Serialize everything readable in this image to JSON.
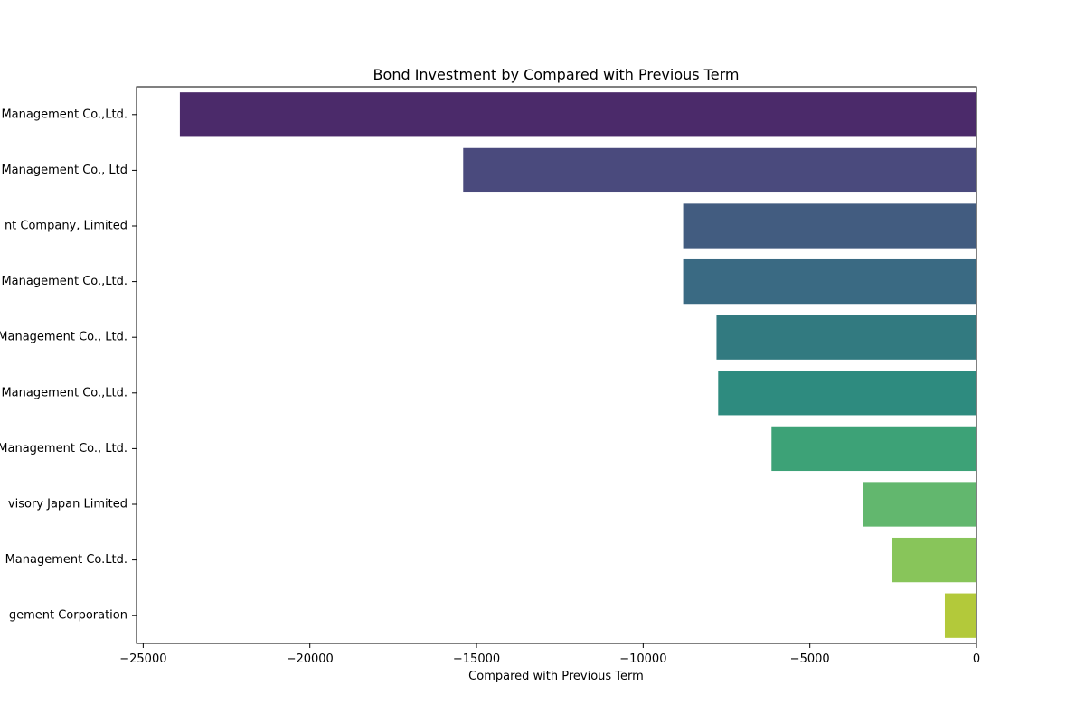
{
  "chart_data": {
    "type": "bar",
    "orientation": "horizontal",
    "title": "Bond Investment by Compared with Previous Term",
    "xlabel": "Compared with Previous Term",
    "ylabel": "",
    "xlim": [
      -25200,
      0
    ],
    "xticks": [
      -25000,
      -20000,
      -15000,
      -10000,
      -5000,
      0
    ],
    "xtick_labels": [
      "−25000",
      "−20000",
      "−15000",
      "−10000",
      "−5000",
      "0"
    ],
    "categories": [
      "Management Co.,Ltd.",
      "Management Co., Ltd",
      "nt Company, Limited",
      "Management Co.,Ltd.",
      "Management Co., Ltd.",
      "Management Co.,Ltd.",
      "Management Co., Ltd.",
      "visory Japan Limited",
      "Management Co.Ltd.",
      "gement Corporation"
    ],
    "values": [
      -23900,
      -15400,
      -8800,
      -8800,
      -7800,
      -7750,
      -6150,
      -3400,
      -2550,
      -950
    ],
    "colors": [
      "#4b2a6a",
      "#4a4a7d",
      "#425c80",
      "#3a6a83",
      "#327a80",
      "#2e8b7f",
      "#3da277",
      "#62b76e",
      "#88c55a",
      "#b3c93a"
    ],
    "grid": false,
    "legend": "none"
  }
}
